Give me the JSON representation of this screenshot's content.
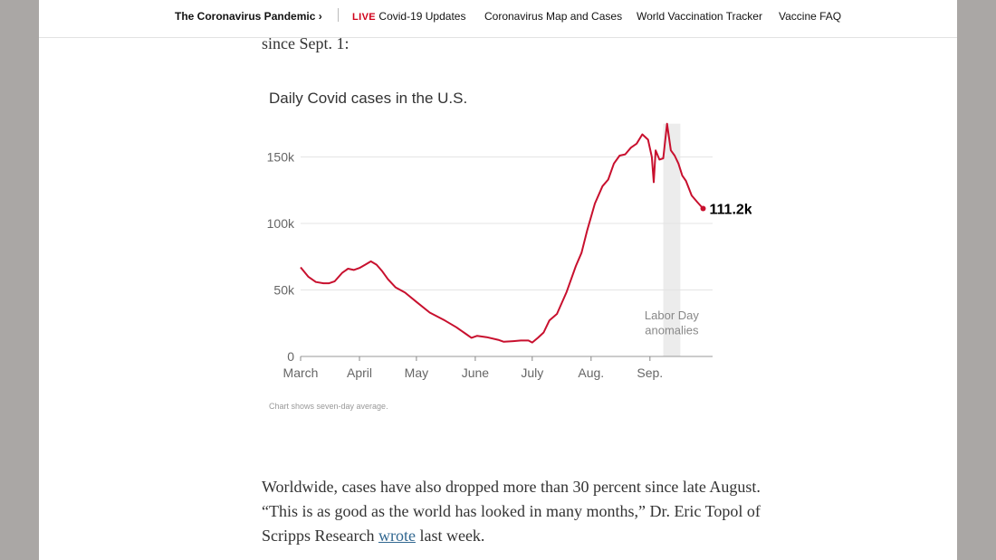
{
  "nav": {
    "home_label": "The Coronavirus Pandemic",
    "home_chevron": "›",
    "live_tag": "LIVE",
    "items": [
      "Covid-19 Updates",
      "Coronavirus Map and Cases",
      "World Vaccination Tracker",
      "Vaccine FAQ"
    ]
  },
  "article": {
    "lead_text": "since Sept. 1:",
    "para_part1": "Worldwide, cases have also dropped more than 30 percent since late August. “This is as good as the world has looked in many months,” Dr. Eric Topol of Scripps Research ",
    "para_link": "wrote",
    "para_part2": " last week."
  },
  "chart_data": {
    "type": "line",
    "title": "Daily Covid cases in the U.S.",
    "footnote": "Chart shows seven-day average.",
    "y_ticks": [
      {
        "value": 0,
        "label": "0"
      },
      {
        "value": 50000,
        "label": "50k"
      },
      {
        "value": 100000,
        "label": "100k"
      },
      {
        "value": 150000,
        "label": "150k"
      }
    ],
    "x_ticks": [
      {
        "day": 0,
        "label": "March"
      },
      {
        "day": 31,
        "label": "April"
      },
      {
        "day": 61,
        "label": "May"
      },
      {
        "day": 92,
        "label": "June"
      },
      {
        "day": 122,
        "label": "July"
      },
      {
        "day": 153,
        "label": "Aug."
      },
      {
        "day": 184,
        "label": "Sep."
      }
    ],
    "x_range_days": [
      0,
      217
    ],
    "y_range": [
      0,
      175000
    ],
    "series": [
      {
        "name": "Daily cases (7-day avg)",
        "color": "#c8102e",
        "points": [
          [
            0,
            67000
          ],
          [
            4,
            60000
          ],
          [
            8,
            56000
          ],
          [
            12,
            55000
          ],
          [
            15,
            55000
          ],
          [
            18,
            56500
          ],
          [
            22,
            63000
          ],
          [
            25,
            66000
          ],
          [
            28,
            65000
          ],
          [
            31,
            66500
          ],
          [
            34,
            69000
          ],
          [
            37,
            71500
          ],
          [
            40,
            69000
          ],
          [
            43,
            64000
          ],
          [
            46,
            58000
          ],
          [
            50,
            52000
          ],
          [
            55,
            48000
          ],
          [
            61,
            41000
          ],
          [
            68,
            33000
          ],
          [
            76,
            27000
          ],
          [
            82,
            22000
          ],
          [
            87,
            17000
          ],
          [
            90,
            14000
          ],
          [
            93,
            15500
          ],
          [
            98,
            14500
          ],
          [
            104,
            12500
          ],
          [
            107,
            11000
          ],
          [
            112,
            11500
          ],
          [
            116,
            12000
          ],
          [
            120,
            12000
          ],
          [
            122,
            10500
          ],
          [
            125,
            14000
          ],
          [
            128,
            18000
          ],
          [
            131,
            27000
          ],
          [
            135,
            32000
          ],
          [
            140,
            48000
          ],
          [
            145,
            68000
          ],
          [
            148,
            78000
          ],
          [
            151,
            95000
          ],
          [
            155,
            115000
          ],
          [
            159,
            128000
          ],
          [
            162,
            133000
          ],
          [
            165,
            145000
          ],
          [
            168,
            151000
          ],
          [
            171,
            152000
          ],
          [
            174,
            157000
          ],
          [
            177,
            160000
          ],
          [
            180,
            167000
          ],
          [
            183,
            163000
          ],
          [
            185,
            150000
          ],
          [
            186,
            131000
          ],
          [
            187,
            155000
          ],
          [
            189,
            148000
          ],
          [
            191,
            149000
          ],
          [
            193,
            175000
          ],
          [
            195,
            155000
          ],
          [
            197,
            151000
          ],
          [
            199,
            145000
          ],
          [
            201,
            136000
          ],
          [
            203,
            132000
          ],
          [
            206,
            121000
          ],
          [
            209,
            116000
          ],
          [
            212,
            111200
          ]
        ]
      }
    ],
    "end_label": "111.2k",
    "annotation": {
      "text_line1": "Labor Day",
      "text_line2": "anomalies",
      "band_start_day": 191,
      "band_end_day": 200
    }
  }
}
